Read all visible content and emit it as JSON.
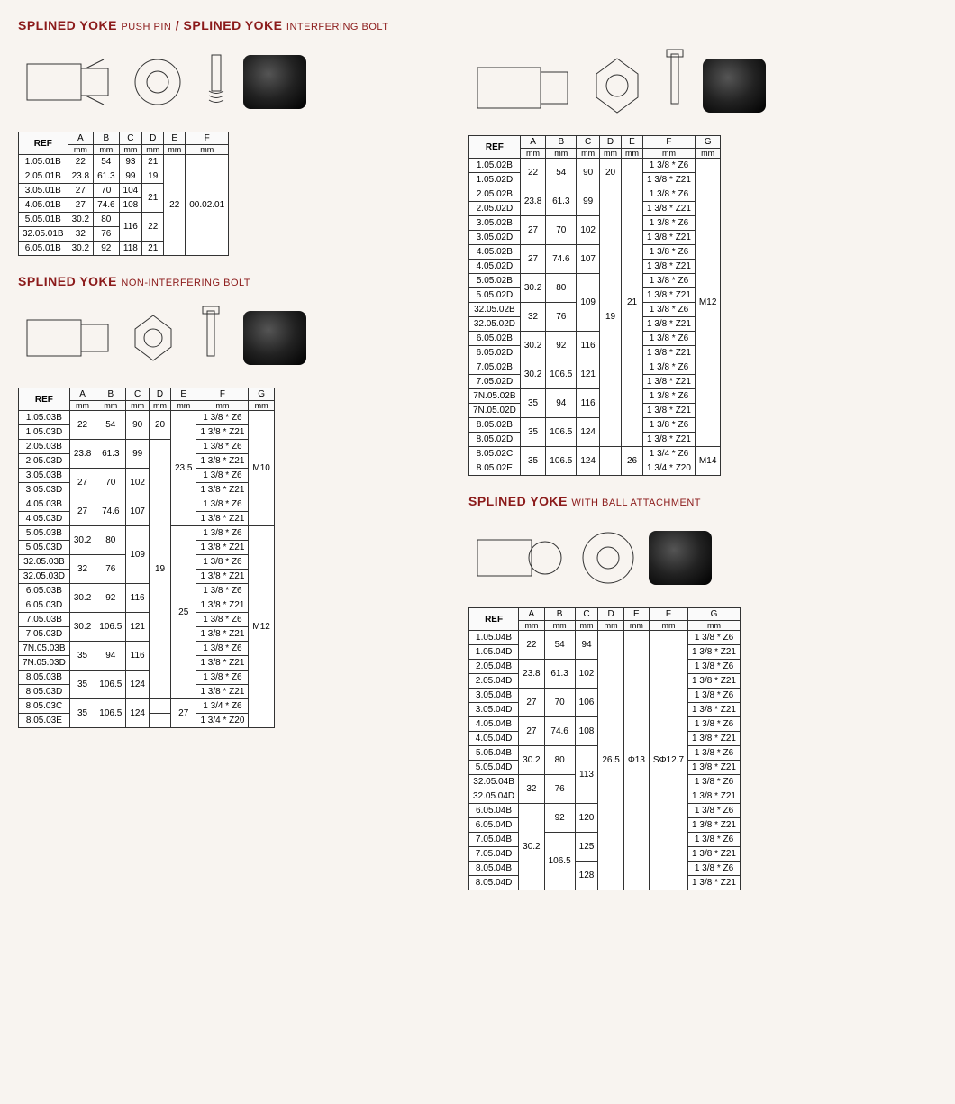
{
  "colors": {
    "title": "#8b1a1a",
    "border": "#333333",
    "bg": "#f8f4f0"
  },
  "sections": {
    "pushpin": {
      "title": "SPLINED YOKE",
      "subtitle1": "PUSH PIN",
      "title2": "SPLINED YOKE",
      "subtitle2": "INTERFERING BOLT"
    },
    "noninterfering": {
      "title": "SPLINED YOKE",
      "subtitle": "NON-INTERFERING BOLT"
    },
    "ball": {
      "title": "SPLINED YOKE",
      "subtitle": "WITH BALL ATTACHMENT"
    }
  },
  "headers": {
    "ref": "REF",
    "cols7": [
      "A",
      "B",
      "C",
      "D",
      "E",
      "F",
      "G"
    ],
    "cols6": [
      "A",
      "B",
      "C",
      "D",
      "E",
      "F"
    ],
    "unit": "mm"
  },
  "table1": {
    "rows": [
      {
        "ref": "1.05.01B",
        "a": "22",
        "b": "54",
        "c": "93",
        "d": "21"
      },
      {
        "ref": "2.05.01B",
        "a": "23.8",
        "b": "61.3",
        "c": "99",
        "d": "19"
      },
      {
        "ref": "3.05.01B",
        "a": "27",
        "b": "70",
        "c": "104"
      },
      {
        "ref": "4.05.01B",
        "a": "27",
        "b": "74.6",
        "c": "108"
      },
      {
        "ref": "5.05.01B",
        "a": "30.2",
        "b": "80"
      },
      {
        "ref": "32.05.01B",
        "a": "32",
        "b": "76"
      },
      {
        "ref": "6.05.01B",
        "a": "30.2",
        "b": "92",
        "c": "118",
        "d": "21"
      }
    ],
    "d_34": "21",
    "c_56": "116",
    "d_56": "22",
    "e": "22",
    "f": "00.02.01"
  },
  "table2": {
    "groups": [
      {
        "refs": [
          "1.05.02B",
          "1.05.02D"
        ],
        "a": "22",
        "b": "54",
        "c": "90",
        "d": "20",
        "f": [
          "1 3/8 * Z6",
          "1 3/8 * Z21"
        ]
      },
      {
        "refs": [
          "2.05.02B",
          "2.05.02D"
        ],
        "a": "23.8",
        "b": "61.3",
        "c": "99",
        "f": [
          "1 3/8 * Z6",
          "1 3/8 * Z21"
        ]
      },
      {
        "refs": [
          "3.05.02B",
          "3.05.02D"
        ],
        "a": "27",
        "b": "70",
        "c": "102",
        "f": [
          "1 3/8 * Z6",
          "1 3/8 * Z21"
        ]
      },
      {
        "refs": [
          "4.05.02B",
          "4.05.02D"
        ],
        "a": "27",
        "b": "74.6",
        "c": "107",
        "f": [
          "1 3/8 * Z6",
          "1 3/8 * Z21"
        ]
      },
      {
        "refs": [
          "5.05.02B",
          "5.05.02D"
        ],
        "a": "30.2",
        "b": "80",
        "f": [
          "1 3/8 * Z6",
          "1 3/8 * Z21"
        ]
      },
      {
        "refs": [
          "32.05.02B",
          "32.05.02D"
        ],
        "a": "32",
        "b": "76",
        "f": [
          "1 3/8 * Z6",
          "1 3/8 * Z21"
        ]
      },
      {
        "refs": [
          "6.05.02B",
          "6.05.02D"
        ],
        "a": "30.2",
        "b": "92",
        "c": "116",
        "f": [
          "1 3/8 * Z6",
          "1 3/8 * Z21"
        ]
      },
      {
        "refs": [
          "7.05.02B",
          "7.05.02D"
        ],
        "a": "30.2",
        "b": "106.5",
        "c": "121",
        "f": [
          "1 3/8 * Z6",
          "1 3/8 * Z21"
        ]
      },
      {
        "refs": [
          "7N.05.02B",
          "7N.05.02D"
        ],
        "a": "35",
        "b": "94",
        "c": "116",
        "f": [
          "1 3/8 * Z6",
          "1 3/8 * Z21"
        ]
      },
      {
        "refs": [
          "8.05.02B",
          "8.05.02D"
        ],
        "a": "35",
        "b": "106.5",
        "c": "124",
        "f": [
          "1 3/8 * Z6",
          "1 3/8 * Z21"
        ]
      },
      {
        "refs": [
          "8.05.02C",
          "8.05.02E"
        ],
        "a": "35",
        "b": "106.5",
        "c": "124",
        "e": "26",
        "f": [
          "1 3/4 * Z6",
          "1 3/4 * Z20"
        ],
        "g": "M14"
      }
    ],
    "c_56": "109",
    "d_long": "19",
    "e_main": "21",
    "g_main": "M12"
  },
  "table3": {
    "groups": [
      {
        "refs": [
          "1.05.03B",
          "1.05.03D"
        ],
        "a": "22",
        "b": "54",
        "c": "90",
        "d": "20",
        "f": [
          "1 3/8 * Z6",
          "1 3/8 * Z21"
        ]
      },
      {
        "refs": [
          "2.05.03B",
          "2.05.03D"
        ],
        "a": "23.8",
        "b": "61.3",
        "c": "99",
        "f": [
          "1 3/8 * Z6",
          "1 3/8 * Z21"
        ]
      },
      {
        "refs": [
          "3.05.03B",
          "3.05.03D"
        ],
        "a": "27",
        "b": "70",
        "c": "102",
        "f": [
          "1 3/8 * Z6",
          "1 3/8 * Z21"
        ]
      },
      {
        "refs": [
          "4.05.03B",
          "4.05.03D"
        ],
        "a": "27",
        "b": "74.6",
        "c": "107",
        "f": [
          "1 3/8 * Z6",
          "1 3/8 * Z21"
        ]
      },
      {
        "refs": [
          "5.05.03B",
          "5.05.03D"
        ],
        "a": "30.2",
        "b": "80",
        "f": [
          "1 3/8 * Z6",
          "1 3/8 * Z21"
        ]
      },
      {
        "refs": [
          "32.05.03B",
          "32.05.03D"
        ],
        "a": "32",
        "b": "76",
        "f": [
          "1 3/8 * Z6",
          "1 3/8 * Z21"
        ]
      },
      {
        "refs": [
          "6.05.03B",
          "6.05.03D"
        ],
        "a": "30.2",
        "b": "92",
        "c": "116",
        "f": [
          "1 3/8 * Z6",
          "1 3/8 * Z21"
        ]
      },
      {
        "refs": [
          "7.05.03B",
          "7.05.03D"
        ],
        "a": "30.2",
        "b": "106.5",
        "c": "121",
        "f": [
          "1 3/8 * Z6",
          "1 3/8 * Z21"
        ]
      },
      {
        "refs": [
          "7N.05.03B",
          "7N.05.03D"
        ],
        "a": "35",
        "b": "94",
        "c": "116",
        "f": [
          "1 3/8 * Z6",
          "1 3/8 * Z21"
        ]
      },
      {
        "refs": [
          "8.05.03B",
          "8.05.03D"
        ],
        "a": "35",
        "b": "106.5",
        "c": "124",
        "f": [
          "1 3/8 * Z6",
          "1 3/8 * Z21"
        ]
      },
      {
        "refs": [
          "8.05.03C",
          "8.05.03E"
        ],
        "a": "35",
        "b": "106.5",
        "c": "124",
        "e": "27",
        "f": [
          "1 3/4 * Z6",
          "1 3/4 * Z20"
        ]
      }
    ],
    "c_56": "109",
    "d_long": "19",
    "e_top": "23.5",
    "e_mid": "25",
    "g_top": "M10",
    "g_mid": "M12"
  },
  "table4": {
    "groups": [
      {
        "refs": [
          "1.05.04B",
          "1.05.04D"
        ],
        "a": "22",
        "b": "54",
        "c": "94",
        "g": [
          "1 3/8 * Z6",
          "1 3/8 * Z21"
        ]
      },
      {
        "refs": [
          "2.05.04B",
          "2.05.04D"
        ],
        "a": "23.8",
        "b": "61.3",
        "c": "102",
        "g": [
          "1 3/8 * Z6",
          "1 3/8 * Z21"
        ]
      },
      {
        "refs": [
          "3.05.04B",
          "3.05.04D"
        ],
        "a": "27",
        "b": "70",
        "c": "106",
        "g": [
          "1 3/8 * Z6",
          "1 3/8 * Z21"
        ]
      },
      {
        "refs": [
          "4.05.04B",
          "4.05.04D"
        ],
        "a": "27",
        "b": "74.6",
        "c": "108",
        "g": [
          "1 3/8 * Z6",
          "1 3/8 * Z21"
        ]
      },
      {
        "refs": [
          "5.05.04B",
          "5.05.04D"
        ],
        "a": "30.2",
        "b": "80",
        "g": [
          "1 3/8 * Z6",
          "1 3/8 * Z21"
        ]
      },
      {
        "refs": [
          "32.05.04B",
          "32.05.04D"
        ],
        "a": "32",
        "b": "76",
        "g": [
          "1 3/8 * Z6",
          "1 3/8 * Z21"
        ]
      },
      {
        "refs": [
          "6.05.04B",
          "6.05.04D"
        ],
        "b": "92",
        "c": "120",
        "g": [
          "1 3/8 * Z6",
          "1 3/8 * Z21"
        ]
      },
      {
        "refs": [
          "7.05.04B",
          "7.05.04D"
        ],
        "c": "125",
        "g": [
          "1 3/8 * Z6",
          "1 3/8 * Z21"
        ]
      },
      {
        "refs": [
          "8.05.04B",
          "8.05.04D"
        ],
        "c": "128",
        "g": [
          "1 3/8 * Z6",
          "1 3/8 * Z21"
        ]
      }
    ],
    "a_678": "30.2",
    "b_789": "106.5",
    "c_56": "113",
    "d": "26.5",
    "e": "Φ13",
    "f": "SΦ12.7"
  }
}
